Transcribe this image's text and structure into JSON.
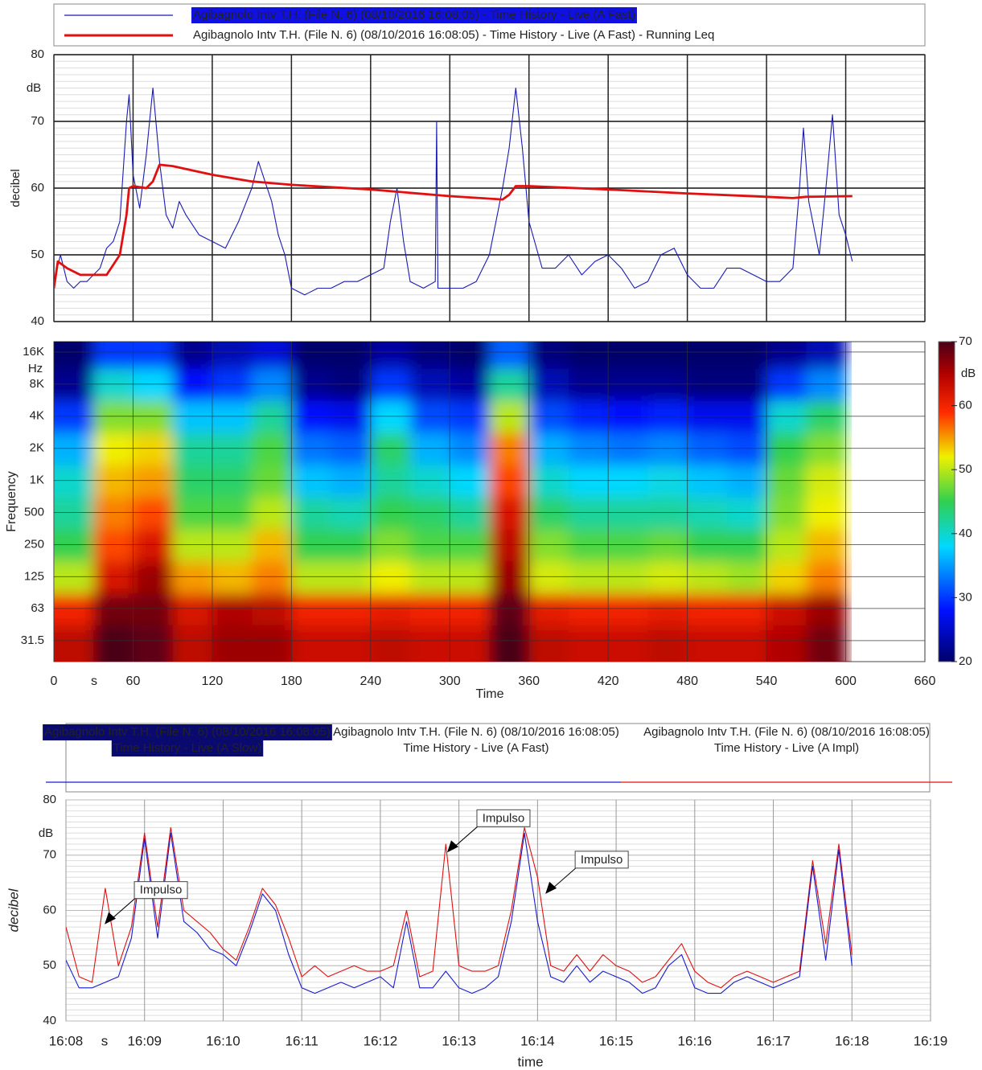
{
  "chart_data": [
    {
      "type": "line",
      "y_label": "decibel",
      "y_unit": "dB",
      "xlim": [
        0,
        660
      ],
      "xticks": [
        0,
        60,
        120,
        180,
        240,
        300,
        360,
        420,
        480,
        540,
        600,
        660
      ],
      "ylim": [
        40,
        80
      ],
      "yticks": [
        40,
        50,
        60,
        70,
        80
      ],
      "grid": true,
      "series": [
        {
          "name": "Agibagnolo Intv T.H.  (File N. 6) (08/10/2016 16:08:05) - Time History - Live (A Fast)",
          "color": "#1a1ab4",
          "selected": true,
          "x": [
            0,
            5,
            10,
            15,
            20,
            25,
            30,
            35,
            40,
            45,
            50,
            55,
            57,
            60,
            65,
            70,
            75,
            80,
            85,
            90,
            95,
            100,
            110,
            120,
            130,
            140,
            150,
            155,
            160,
            165,
            170,
            175,
            180,
            190,
            200,
            210,
            220,
            230,
            240,
            250,
            255,
            260,
            265,
            270,
            280,
            289,
            290,
            291,
            300,
            310,
            320,
            330,
            340,
            345,
            350,
            355,
            360,
            370,
            380,
            390,
            400,
            410,
            420,
            430,
            440,
            450,
            460,
            470,
            480,
            490,
            500,
            510,
            520,
            530,
            540,
            550,
            560,
            565,
            568,
            572,
            580,
            585,
            590,
            595,
            600,
            605
          ],
          "values": [
            46,
            50,
            46,
            45,
            46,
            46,
            47,
            48,
            51,
            52,
            55,
            70,
            74,
            62,
            57,
            65,
            75,
            64,
            56,
            54,
            58,
            56,
            53,
            52,
            51,
            55,
            60,
            64,
            61,
            58,
            53,
            50,
            45,
            44,
            45,
            45,
            46,
            46,
            47,
            48,
            55,
            60,
            52,
            46,
            45,
            46,
            70,
            45,
            45,
            45,
            46,
            50,
            60,
            66,
            75,
            66,
            55,
            48,
            48,
            50,
            47,
            49,
            50,
            48,
            45,
            46,
            50,
            51,
            47,
            45,
            45,
            48,
            48,
            47,
            46,
            46,
            48,
            60,
            69,
            58,
            50,
            60,
            71,
            56,
            53,
            49
          ]
        },
        {
          "name": "Agibagnolo Intv T.H.  (File N. 6) (08/10/2016 16:08:05) - Time History - Live (A Fast) - Running Leq",
          "color": "#e01010",
          "selected": false,
          "x": [
            0,
            3,
            10,
            20,
            30,
            40,
            50,
            55,
            57,
            60,
            70,
            75,
            80,
            90,
            120,
            150,
            180,
            240,
            300,
            340,
            345,
            350,
            360,
            420,
            480,
            540,
            560,
            570,
            605
          ],
          "values": [
            45,
            49,
            48,
            47,
            47,
            47,
            50,
            56,
            60,
            60.3,
            60,
            61,
            63.5,
            63.3,
            62,
            61,
            60.5,
            59.8,
            58.8,
            58.3,
            59,
            60.3,
            60.3,
            59.8,
            59.2,
            58.7,
            58.5,
            58.7,
            58.8
          ]
        }
      ]
    },
    {
      "type": "heatmap",
      "y_label": "Frequency",
      "y_unit": "Hz",
      "x_label": "Time",
      "x_unit": "s",
      "xlim": [
        0,
        660
      ],
      "xticks": [
        0,
        60,
        120,
        180,
        240,
        300,
        360,
        420,
        480,
        540,
        600,
        660
      ],
      "ylim": [
        20,
        20000
      ],
      "log_y": true,
      "yticks": [
        31.5,
        {
          "value": 63,
          "label": "63"
        },
        125,
        250,
        500,
        {
          "value": 1000,
          "label": "1K"
        },
        {
          "value": 2000,
          "label": "2K"
        },
        {
          "value": 4000,
          "label": "4K"
        },
        {
          "value": 8000,
          "label": "8K"
        },
        {
          "value": 16000,
          "label": "16K"
        }
      ],
      "x": [
        15,
        45,
        75,
        105,
        135,
        165,
        195,
        225,
        255,
        285,
        315,
        345,
        375,
        405,
        435,
        465,
        495,
        525,
        555,
        585
      ],
      "y": [
        31.5,
        63,
        125,
        250,
        500,
        1000,
        2000,
        4000,
        8000,
        16000
      ],
      "values": [
        [
          64,
          70,
          69,
          64,
          66,
          66,
          63,
          63,
          64,
          63,
          63,
          70,
          64,
          63,
          63,
          64,
          63,
          63,
          65,
          68
        ],
        [
          60,
          68,
          68,
          62,
          65,
          64,
          60,
          60,
          61,
          60,
          60,
          69,
          61,
          60,
          60,
          61,
          60,
          60,
          63,
          66
        ],
        [
          50,
          62,
          66,
          55,
          54,
          56,
          50,
          50,
          52,
          50,
          50,
          66,
          51,
          50,
          50,
          51,
          50,
          49,
          53,
          56
        ],
        [
          45,
          58,
          62,
          50,
          50,
          54,
          45,
          45,
          48,
          46,
          46,
          64,
          48,
          46,
          46,
          47,
          45,
          45,
          50,
          54
        ],
        [
          42,
          56,
          58,
          46,
          46,
          50,
          42,
          41,
          45,
          44,
          42,
          62,
          44,
          42,
          42,
          42,
          41,
          40,
          48,
          52
        ],
        [
          40,
          54,
          55,
          44,
          44,
          47,
          37,
          36,
          42,
          40,
          38,
          58,
          40,
          38,
          38,
          39,
          37,
          36,
          47,
          51
        ],
        [
          36,
          52,
          53,
          42,
          42,
          46,
          33,
          32,
          44,
          36,
          34,
          56,
          36,
          34,
          33,
          34,
          32,
          31,
          45,
          48
        ],
        [
          30,
          48,
          48,
          37,
          37,
          42,
          28,
          27,
          38,
          31,
          30,
          50,
          31,
          29,
          28,
          29,
          27,
          27,
          40,
          44
        ],
        [
          22,
          40,
          38,
          28,
          30,
          34,
          22,
          21,
          30,
          24,
          23,
          42,
          24,
          22,
          22,
          22,
          21,
          21,
          30,
          34
        ],
        [
          20,
          30,
          30,
          22,
          24,
          26,
          20,
          20,
          23,
          21,
          20,
          32,
          21,
          20,
          20,
          20,
          20,
          20,
          22,
          24
        ]
      ],
      "colorbar": {
        "lim": [
          20,
          70
        ],
        "ticks": [
          20,
          30,
          40,
          50,
          60,
          70
        ],
        "unit": "dB"
      }
    },
    {
      "type": "line",
      "y_label": "decibel",
      "y_unit": "dB",
      "x_label": "time",
      "x_unit": "s",
      "xlim": [
        0,
        660
      ],
      "xticks": [
        {
          "value": 0,
          "label": "16:08"
        },
        {
          "value": 60,
          "label": "16:09"
        },
        {
          "value": 120,
          "label": "16:10"
        },
        {
          "value": 180,
          "label": "16:11"
        },
        {
          "value": 240,
          "label": "16:12"
        },
        {
          "value": 300,
          "label": "16:13"
        },
        {
          "value": 360,
          "label": "16:14"
        },
        {
          "value": 420,
          "label": "16:15"
        },
        {
          "value": 480,
          "label": "16:16"
        },
        {
          "value": 540,
          "label": "16:17"
        },
        {
          "value": 600,
          "label": "16:18"
        },
        {
          "value": 660,
          "label": "16:19"
        }
      ],
      "ylim": [
        40,
        80
      ],
      "yticks": [
        40,
        50,
        60,
        70,
        80
      ],
      "grid": true,
      "legend": [
        {
          "lines": [
            "Agibagnolo Intv T.H.  (File N. 6) (08/10/2016 16:08:05)",
            "Time History - Live (A Slow)"
          ],
          "color": "#0a0a6e",
          "selected": true
        },
        {
          "lines": [
            "Agibagnolo Intv T.H.  (File N. 6) (08/10/2016 16:08:05)",
            "Time History - Live (A Fast)"
          ],
          "color": "#1a1ad0",
          "selected": false
        },
        {
          "lines": [
            "Agibagnolo Intv T.H.  (File N. 6) (08/10/2016 16:08:05)",
            "Time History - Live (A Impl)"
          ],
          "color": "#e01010",
          "selected": false
        }
      ],
      "series": [
        {
          "color": "#e01010",
          "x": [
            0,
            10,
            20,
            30,
            40,
            50,
            60,
            70,
            80,
            90,
            100,
            110,
            120,
            130,
            140,
            150,
            160,
            170,
            180,
            190,
            200,
            210,
            220,
            230,
            240,
            250,
            260,
            270,
            280,
            290,
            300,
            310,
            320,
            330,
            340,
            350,
            360,
            370,
            380,
            390,
            400,
            410,
            420,
            430,
            440,
            450,
            460,
            470,
            480,
            490,
            500,
            510,
            520,
            530,
            540,
            550,
            560,
            570,
            580,
            590,
            600
          ],
          "values": [
            57,
            48,
            47,
            64,
            50,
            57,
            74,
            57,
            75,
            60,
            58,
            56,
            53,
            51,
            57,
            64,
            61,
            55,
            48,
            50,
            48,
            49,
            50,
            49,
            49,
            50,
            60,
            48,
            49,
            72,
            50,
            49,
            49,
            50,
            60,
            75,
            66,
            50,
            49,
            52,
            49,
            52,
            50,
            49,
            47,
            48,
            51,
            54,
            49,
            47,
            46,
            48,
            49,
            48,
            47,
            48,
            49,
            69,
            54,
            72,
            52
          ]
        },
        {
          "color": "#1a1ad0",
          "x": [
            0,
            10,
            20,
            30,
            40,
            50,
            60,
            70,
            80,
            90,
            100,
            110,
            120,
            130,
            140,
            150,
            160,
            170,
            180,
            190,
            200,
            210,
            220,
            230,
            240,
            250,
            260,
            270,
            280,
            290,
            300,
            310,
            320,
            330,
            340,
            350,
            360,
            370,
            380,
            390,
            400,
            410,
            420,
            430,
            440,
            450,
            460,
            470,
            480,
            490,
            500,
            510,
            520,
            530,
            540,
            550,
            560,
            570,
            580,
            590,
            600
          ],
          "values": [
            51,
            46,
            46,
            47,
            48,
            55,
            73,
            55,
            74,
            58,
            56,
            53,
            52,
            50,
            56,
            63,
            60,
            52,
            46,
            45,
            46,
            47,
            46,
            47,
            48,
            46,
            58,
            46,
            46,
            49,
            46,
            45,
            46,
            48,
            58,
            74,
            58,
            48,
            47,
            50,
            47,
            49,
            48,
            47,
            45,
            46,
            50,
            52,
            46,
            45,
            45,
            47,
            48,
            47,
            46,
            47,
            48,
            68,
            51,
            71,
            50
          ]
        }
      ],
      "annotations": [
        {
          "text": "Impulso",
          "x": 29.5,
          "y": 57.5
        },
        {
          "text": "Impulso",
          "x": 291,
          "y": 70.5
        },
        {
          "text": "Impulso",
          "x": 366,
          "y": 63
        }
      ]
    }
  ]
}
